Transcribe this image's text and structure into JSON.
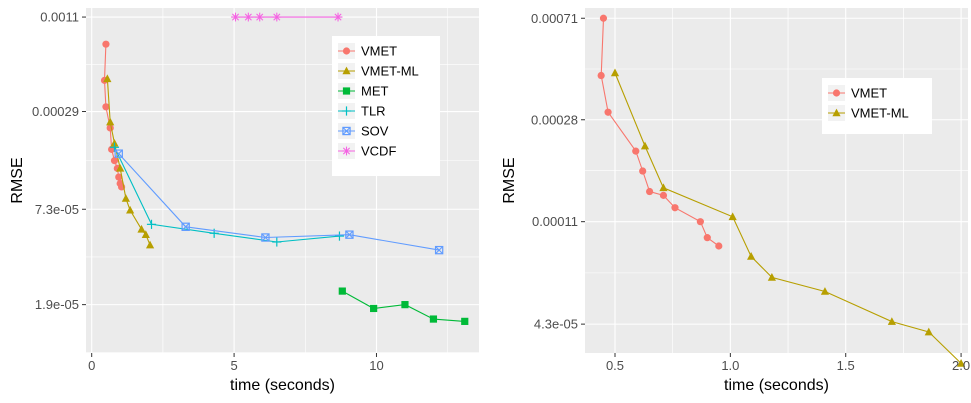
{
  "colors": {
    "VMET": "#F8766D",
    "VMET-ML": "#B79F00",
    "MET": "#00BA38",
    "TLR": "#00BFC4",
    "SOV": "#619CFF",
    "VCDF": "#F564E3"
  },
  "chart_data": [
    {
      "type": "line",
      "xlabel": "time (seconds)",
      "ylabel": "RMSE",
      "y_scale": "log",
      "xlim": [
        -0.2,
        13.6
      ],
      "ylim": [
        9.6e-06,
        0.00125
      ],
      "x_ticks": [
        0,
        5,
        10
      ],
      "x_tick_labels": [
        "0",
        "5",
        "10"
      ],
      "y_ticks": [
        0.0011,
        0.00029,
        7.3e-05,
        1.9e-05
      ],
      "y_tick_labels": [
        "0.0011",
        "0.00029",
        "7.3e-05",
        "1.9e-05"
      ],
      "legend_position": "top-right",
      "series": [
        {
          "name": "VMET",
          "marker": "circle",
          "x": [
            0.5,
            0.45,
            0.5,
            0.65,
            0.7,
            0.8,
            0.9,
            0.95,
            1.0,
            1.05
          ],
          "y": [
            0.00075,
            0.00045,
            0.00031,
            0.00023,
            0.00017,
            0.000145,
            0.00013,
            0.000115,
            0.000105,
            0.0001
          ]
        },
        {
          "name": "VMET-ML",
          "marker": "triangle",
          "x": [
            0.55,
            0.65,
            0.8,
            1.0,
            1.2,
            1.35,
            1.75,
            1.9,
            2.05
          ],
          "y": [
            0.00046,
            0.00025,
            0.000185,
            0.00013,
            8.5e-05,
            7.2e-05,
            5.5e-05,
            5.1e-05,
            4.4e-05
          ]
        },
        {
          "name": "MET",
          "marker": "square",
          "x": [
            8.8,
            9.9,
            11.0,
            12.0,
            13.1
          ],
          "y": [
            2.3e-05,
            1.8e-05,
            1.9e-05,
            1.55e-05,
            1.5e-05
          ]
        },
        {
          "name": "TLR",
          "marker": "plus",
          "x": [
            0.8,
            2.1,
            4.3,
            6.5,
            8.7
          ],
          "y": [
            0.000175,
            5.9e-05,
            5.2e-05,
            4.6e-05,
            5e-05
          ]
        },
        {
          "name": "SOV",
          "marker": "square-x",
          "x": [
            0.95,
            3.3,
            6.1,
            9.05,
            12.2
          ],
          "y": [
            0.00016,
            5.7e-05,
            4.9e-05,
            5.1e-05,
            4.1e-05
          ]
        },
        {
          "name": "VCDF",
          "marker": "star",
          "x": [
            5.05,
            5.5,
            5.9,
            6.5,
            8.65
          ],
          "y": [
            0.0011,
            0.0011,
            0.0011,
            0.0011,
            0.0011
          ]
        }
      ]
    },
    {
      "type": "line",
      "xlabel": "time (seconds)",
      "ylabel": "RMSE",
      "y_scale": "log",
      "xlim": [
        0.37,
        2.03
      ],
      "ylim": [
        3.3e-05,
        0.00078
      ],
      "x_ticks": [
        0.5,
        1.0,
        1.5,
        2.0
      ],
      "x_tick_labels": [
        "0.5",
        "1.0",
        "1.5",
        "2.0"
      ],
      "y_ticks": [
        0.00071,
        0.00028,
        0.00011,
        4.3e-05
      ],
      "y_tick_labels": [
        "0.00071",
        "0.00028",
        "0.00011",
        "4.3e-05"
      ],
      "legend_position": "top-right",
      "series": [
        {
          "name": "VMET",
          "marker": "circle",
          "x": [
            0.45,
            0.44,
            0.47,
            0.59,
            0.62,
            0.65,
            0.71,
            0.76,
            0.87,
            0.9,
            0.95
          ],
          "y": [
            0.00071,
            0.00042,
            0.0003,
            0.00021,
            0.000175,
            0.000145,
            0.00014,
            0.000125,
            0.00011,
            9.5e-05,
            8.8e-05
          ]
        },
        {
          "name": "VMET-ML",
          "marker": "triangle",
          "x": [
            0.5,
            0.63,
            0.71,
            1.01,
            1.09,
            1.18,
            1.41,
            1.7,
            1.86,
            2.0
          ],
          "y": [
            0.00043,
            0.00022,
            0.00015,
            0.000115,
            8e-05,
            6.6e-05,
            5.8e-05,
            4.4e-05,
            4e-05,
            3e-05
          ]
        }
      ]
    }
  ]
}
